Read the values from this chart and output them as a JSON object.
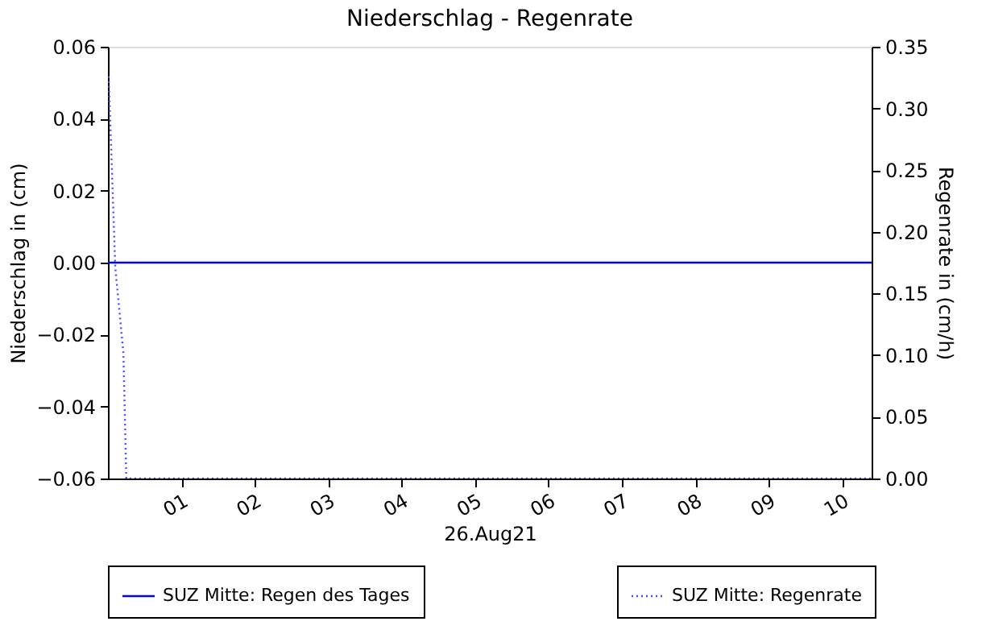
{
  "chart_data": {
    "type": "line",
    "title": "Niederschlag - Regenrate",
    "xlabel": "26.Aug21",
    "ylabel": "Niederschlag in (cm)",
    "y2label": "Regenrate in (cm/h)",
    "xlim": [
      0,
      10.4
    ],
    "xticks": [
      {
        "value": 1,
        "label": "01"
      },
      {
        "value": 2,
        "label": "02"
      },
      {
        "value": 3,
        "label": "03"
      },
      {
        "value": 4,
        "label": "04"
      },
      {
        "value": 5,
        "label": "05"
      },
      {
        "value": 6,
        "label": "06"
      },
      {
        "value": 7,
        "label": "07"
      },
      {
        "value": 8,
        "label": "08"
      },
      {
        "value": 9,
        "label": "09"
      },
      {
        "value": 10,
        "label": "10"
      }
    ],
    "ylim": [
      -0.06,
      0.06
    ],
    "yticks": [
      {
        "value": -0.06,
        "label": "−0.06"
      },
      {
        "value": -0.04,
        "label": "−0.04"
      },
      {
        "value": -0.02,
        "label": "−0.02"
      },
      {
        "value": 0,
        "label": "0.00"
      },
      {
        "value": 0.02,
        "label": "0.02"
      },
      {
        "value": 0.04,
        "label": "0.04"
      },
      {
        "value": 0.06,
        "label": "0.06"
      }
    ],
    "y2lim": [
      0,
      0.35
    ],
    "y2ticks": [
      {
        "value": 0,
        "label": "0.00"
      },
      {
        "value": 0.05,
        "label": "0.05"
      },
      {
        "value": 0.1,
        "label": "0.10"
      },
      {
        "value": 0.15,
        "label": "0.15"
      },
      {
        "value": 0.2,
        "label": "0.20"
      },
      {
        "value": 0.25,
        "label": "0.25"
      },
      {
        "value": 0.3,
        "label": "0.30"
      },
      {
        "value": 0.35,
        "label": "0.35"
      }
    ],
    "grid": false,
    "legend": "bottom",
    "series": [
      {
        "name": "SUZ Mitte: Regen des Tages",
        "color": "#0000ff",
        "line_style": "solid",
        "x": [
          0,
          10.4
        ],
        "values": [
          0,
          0
        ]
      },
      {
        "name": "SUZ Mitte: Regenrate",
        "color": "#4b4bff",
        "line_style": "dotted",
        "axis": "y2",
        "x": [
          0.01,
          0.1,
          0.21,
          0.25,
          10.4
        ],
        "values": [
          0.326,
          0.171,
          0.102,
          0,
          0
        ]
      }
    ]
  }
}
